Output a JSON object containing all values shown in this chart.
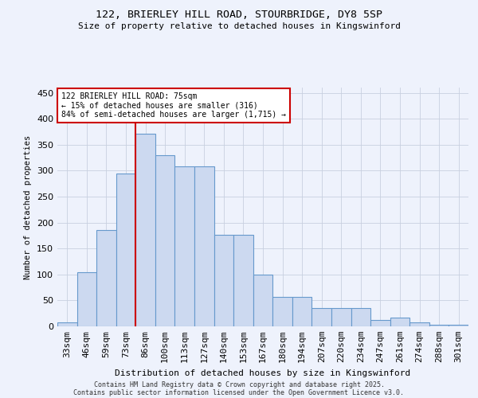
{
  "title1": "122, BRIERLEY HILL ROAD, STOURBRIDGE, DY8 5SP",
  "title2": "Size of property relative to detached houses in Kingswinford",
  "xlabel": "Distribution of detached houses by size in Kingswinford",
  "ylabel": "Number of detached properties",
  "categories": [
    "33sqm",
    "46sqm",
    "59sqm",
    "73sqm",
    "86sqm",
    "100sqm",
    "113sqm",
    "127sqm",
    "140sqm",
    "153sqm",
    "167sqm",
    "180sqm",
    "194sqm",
    "207sqm",
    "220sqm",
    "234sqm",
    "247sqm",
    "261sqm",
    "274sqm",
    "288sqm",
    "301sqm"
  ],
  "values": [
    8,
    104,
    186,
    294,
    371,
    330,
    308,
    308,
    176,
    176,
    100,
    57,
    57,
    35,
    35,
    35,
    13,
    17,
    8,
    3,
    3
  ],
  "bar_color": "#ccd9f0",
  "bar_edge_color": "#6699cc",
  "background_color": "#eef2fc",
  "vline_color": "#cc0000",
  "vline_index": 3.5,
  "annotation_line1": "122 BRIERLEY HILL ROAD: 75sqm",
  "annotation_line2": "← 15% of detached houses are smaller (316)",
  "annotation_line3": "84% of semi-detached houses are larger (1,715) →",
  "ylim": [
    0,
    460
  ],
  "yticks": [
    0,
    50,
    100,
    150,
    200,
    250,
    300,
    350,
    400,
    450
  ],
  "footer1": "Contains HM Land Registry data © Crown copyright and database right 2025.",
  "footer2": "Contains public sector information licensed under the Open Government Licence v3.0."
}
